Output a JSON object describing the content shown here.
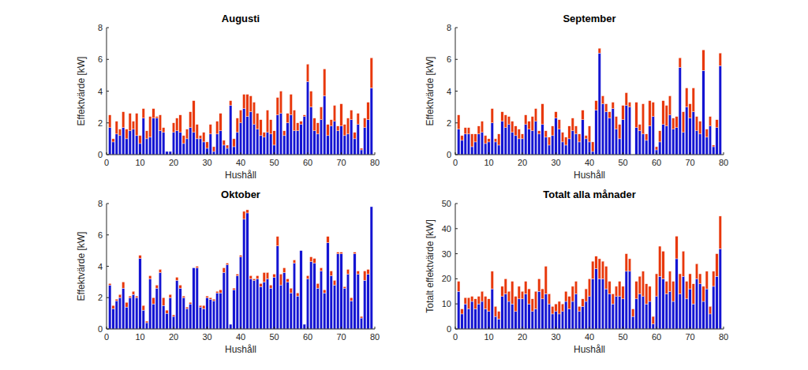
{
  "chart_data": [
    {
      "type": "bar",
      "title": "Augusti",
      "x_label": "Hushåll",
      "y_label": "Effektvärde [kW]",
      "stacked": true,
      "x": [
        1,
        2,
        3,
        4,
        5,
        6,
        7,
        8,
        9,
        10,
        11,
        12,
        13,
        14,
        15,
        16,
        17,
        18,
        19,
        20,
        21,
        22,
        23,
        24,
        25,
        26,
        27,
        28,
        29,
        30,
        31,
        32,
        33,
        34,
        35,
        36,
        37,
        38,
        39,
        40,
        41,
        42,
        43,
        44,
        45,
        46,
        47,
        48,
        49,
        50,
        51,
        52,
        53,
        54,
        55,
        56,
        57,
        58,
        59,
        60,
        61,
        62,
        63,
        64,
        65,
        66,
        67,
        68,
        69,
        70,
        71,
        72,
        73,
        74,
        75,
        76,
        77,
        78,
        79
      ],
      "xlim": [
        0,
        80
      ],
      "xticks": [
        0,
        10,
        20,
        30,
        40,
        50,
        60,
        70,
        80
      ],
      "ylim": [
        0,
        8
      ],
      "yticks": [
        0,
        2,
        4,
        6,
        8
      ],
      "series": [
        {
          "color": "#1414d2",
          "values": [
            1.7,
            0.8,
            1.3,
            1.2,
            1.7,
            1.0,
            1.5,
            1.6,
            1.2,
            0.7,
            2.3,
            1.0,
            1.1,
            2.3,
            2.3,
            1.5,
            1.4,
            0.2,
            0.2,
            1.4,
            1.5,
            1.4,
            0.7,
            1.0,
            1.7,
            1.4,
            1.0,
            1.0,
            0.8,
            0.4,
            1.3,
            0.2,
            1.3,
            1.5,
            0.6,
            0.4,
            3.1,
            0.5,
            1.4,
            2.0,
            2.9,
            2.4,
            2.7,
            1.9,
            1.6,
            1.2,
            1.1,
            1.4,
            1.3,
            0.6,
            2.5,
            2.6,
            1.2,
            2.0,
            2.5,
            1.5,
            1.5,
            1.9,
            2.4,
            4.6,
            3.0,
            1.5,
            1.3,
            2.2,
            3.7,
            1.2,
            1.8,
            2.1,
            1.5,
            1.8,
            1.2,
            1.3,
            2.2,
            1.0,
            1.9,
            0.3,
            1.7,
            2.2,
            4.2
          ]
        },
        {
          "color": "#e8380c",
          "values": [
            0.8,
            0.2,
            0.8,
            0.4,
            1.0,
            0.6,
            1.1,
            0.5,
            1.4,
            0.5,
            0.6,
            0.5,
            1.3,
            0.6,
            0.1,
            1.0,
            0.3,
            0,
            0,
            0.6,
            0.8,
            1.1,
            0.5,
            0.6,
            1.0,
            2.0,
            0.9,
            0.2,
            0.6,
            0.4,
            0.6,
            0.3,
            0.8,
            1.1,
            0.3,
            0.2,
            0.3,
            0.5,
            0.9,
            0.8,
            0.9,
            1.4,
            1.0,
            1.4,
            1.0,
            1.0,
            0.3,
            1.4,
            0.9,
            0.9,
            1.1,
            1.4,
            0.3,
            0.6,
            1.3,
            1.3,
            0.5,
            0.2,
            0.1,
            1.1,
            1.0,
            0.8,
            0.7,
            0.8,
            1.7,
            0.7,
            0.4,
            1.0,
            0.3,
            1.4,
            0.7,
            1.0,
            0.6,
            0.4,
            0.7,
            0.1,
            0.6,
            1.1,
            1.9
          ]
        }
      ]
    },
    {
      "type": "bar",
      "title": "September",
      "x_label": "Hushåll",
      "y_label": "Effektvärde [kW]",
      "stacked": true,
      "x": [
        1,
        2,
        3,
        4,
        5,
        6,
        7,
        8,
        9,
        10,
        11,
        12,
        13,
        14,
        15,
        16,
        17,
        18,
        19,
        20,
        21,
        22,
        23,
        24,
        25,
        26,
        27,
        28,
        29,
        30,
        31,
        32,
        33,
        34,
        35,
        36,
        37,
        38,
        39,
        40,
        41,
        42,
        43,
        44,
        45,
        46,
        47,
        48,
        49,
        50,
        51,
        52,
        53,
        54,
        55,
        56,
        57,
        58,
        59,
        60,
        61,
        62,
        63,
        64,
        65,
        66,
        67,
        68,
        69,
        70,
        71,
        72,
        73,
        74,
        75,
        76,
        77,
        78,
        79
      ],
      "xlim": [
        0,
        80
      ],
      "xticks": [
        0,
        10,
        20,
        30,
        40,
        50,
        60,
        70,
        80
      ],
      "ylim": [
        0,
        8
      ],
      "yticks": [
        0,
        2,
        4,
        6,
        8
      ],
      "series": [
        {
          "color": "#1414d2",
          "values": [
            1.6,
            0.9,
            1.3,
            1.3,
            0.5,
            0.8,
            1.3,
            1.4,
            0.7,
            0.8,
            2.0,
            0.8,
            0.6,
            2.1,
            1.7,
            1.9,
            1.4,
            1.2,
            1.0,
            1.0,
            1.9,
            1.6,
            1.5,
            2.1,
            1.3,
            1.9,
            1.1,
            0.6,
            1.2,
            2.3,
            1.6,
            0.8,
            0.6,
            1.0,
            1.5,
            1.3,
            0.8,
            2.2,
            1.0,
            0.8,
            0.2,
            2.8,
            6.4,
            3.2,
            2.7,
            2.3,
            2.9,
            1.6,
            1.0,
            2.2,
            3.1,
            3.0,
            0,
            1.7,
            1.5,
            1.3,
            0.9,
            1.8,
            2.4,
            0.3,
            0.8,
            1.9,
            1.8,
            2.5,
            1.6,
            1.7,
            5.5,
            1.4,
            3.0,
            2.3,
            2.7,
            1.5,
            1.3,
            5.3,
            1.1,
            1.8,
            0.5,
            1.7,
            5.6
          ]
        },
        {
          "color": "#e8380c",
          "values": [
            0.9,
            0.3,
            0.4,
            0.4,
            0.8,
            0.5,
            0.5,
            0.7,
            0.5,
            0.2,
            0.9,
            0.2,
            0.7,
            0.6,
            0.8,
            0.5,
            0.7,
            0.6,
            0.6,
            0.3,
            0.6,
            0.5,
            0.9,
            0.8,
            0.2,
            1.3,
            0.4,
            0.5,
            0.6,
            0.4,
            0.6,
            0.6,
            0.5,
            0.8,
            0.8,
            0.5,
            0.5,
            0.6,
            0.2,
            1.0,
            0.6,
            0.6,
            0.3,
            0.5,
            0.5,
            0.4,
            0.4,
            0.8,
            0.9,
            0.9,
            0.8,
            0.3,
            0,
            1.6,
            0.4,
            1.9,
            0.4,
            1.6,
            0.9,
            0.2,
            0.7,
            1.5,
            1.3,
            1.2,
            0.7,
            0.7,
            0.6,
            1.3,
            1.2,
            0.9,
            1.5,
            0.9,
            0.8,
            1.3,
            0.5,
            0.6,
            0.1,
            0.5,
            0.8
          ]
        }
      ]
    },
    {
      "type": "bar",
      "title": "Oktober",
      "x_label": "Hushåll",
      "y_label": "Effektvärde [kW]",
      "stacked": true,
      "x": [
        1,
        2,
        3,
        4,
        5,
        6,
        7,
        8,
        9,
        10,
        11,
        12,
        13,
        14,
        15,
        16,
        17,
        18,
        19,
        20,
        21,
        22,
        23,
        24,
        25,
        26,
        27,
        28,
        29,
        30,
        31,
        32,
        33,
        34,
        35,
        36,
        37,
        38,
        39,
        40,
        41,
        42,
        43,
        44,
        45,
        46,
        47,
        48,
        49,
        50,
        51,
        52,
        53,
        54,
        55,
        56,
        57,
        58,
        59,
        60,
        61,
        62,
        63,
        64,
        65,
        66,
        67,
        68,
        69,
        70,
        71,
        72,
        73,
        74,
        75,
        76,
        77,
        78,
        79
      ],
      "xlim": [
        0,
        80
      ],
      "xticks": [
        0,
        10,
        20,
        30,
        40,
        50,
        60,
        70,
        80
      ],
      "ylim": [
        0,
        8
      ],
      "yticks": [
        0,
        2,
        4,
        6,
        8
      ],
      "series": [
        {
          "color": "#1414d2",
          "values": [
            2.8,
            1.3,
            1.8,
            2.0,
            2.6,
            1.4,
            2.0,
            2.2,
            2.0,
            4.5,
            1.2,
            0.4,
            3.2,
            1.6,
            2.6,
            3.6,
            1.5,
            1.0,
            2.0,
            0.8,
            3.1,
            2.6,
            2.0,
            1.3,
            1.6,
            3.9,
            3.9,
            1.4,
            1.3,
            2.0,
            1.9,
            1.8,
            2.3,
            2.3,
            3.6,
            4.1,
            0.3,
            2.5,
            3.4,
            4.6,
            7.0,
            7.4,
            3.2,
            3.1,
            3.2,
            2.7,
            3.0,
            3.2,
            2.6,
            3.3,
            5.3,
            2.8,
            3.6,
            3.0,
            2.3,
            4.2,
            2.1,
            5.0,
            0.3,
            3.2,
            4.3,
            4.2,
            2.6,
            3.7,
            2.3,
            5.5,
            3.4,
            2.8,
            4.8,
            4.8,
            2.6,
            3.5,
            1.8,
            4.8,
            3.5,
            0.7,
            3.1,
            3.5,
            7.8
          ]
        },
        {
          "color": "#e8380c",
          "values": [
            0.1,
            0.2,
            0.1,
            0.2,
            0.4,
            0.3,
            0.1,
            0.2,
            0.1,
            0.2,
            0.3,
            0.1,
            0.2,
            0.4,
            0.2,
            0.2,
            0.5,
            0.2,
            0.2,
            0.1,
            0.2,
            0.2,
            0.1,
            0.1,
            0.1,
            0,
            0.1,
            0.1,
            0.2,
            0.1,
            0.1,
            0.1,
            0.1,
            0.2,
            0.3,
            0.1,
            0,
            0.1,
            0.1,
            0.1,
            0.5,
            0.2,
            0.2,
            0.1,
            0.2,
            0.2,
            0.6,
            0.4,
            0.2,
            0.2,
            0.6,
            0.7,
            0.3,
            0.2,
            0.3,
            0.2,
            0.2,
            0,
            0,
            0.2,
            0.3,
            0.3,
            0.3,
            0.2,
            0.2,
            0.4,
            0.3,
            0.3,
            0.1,
            0.1,
            0.1,
            0.3,
            0.2,
            0.1,
            0.2,
            0.1,
            0.6,
            0.3,
            0
          ]
        }
      ]
    },
    {
      "type": "bar",
      "title": "Totalt alla månader",
      "x_label": "Hushåll",
      "y_label": "Totalt effektvärde [kW]",
      "stacked": true,
      "x": [
        1,
        2,
        3,
        4,
        5,
        6,
        7,
        8,
        9,
        10,
        11,
        12,
        13,
        14,
        15,
        16,
        17,
        18,
        19,
        20,
        21,
        22,
        23,
        24,
        25,
        26,
        27,
        28,
        29,
        30,
        31,
        32,
        33,
        34,
        35,
        36,
        37,
        38,
        39,
        40,
        41,
        42,
        43,
        44,
        45,
        46,
        47,
        48,
        49,
        50,
        51,
        52,
        53,
        54,
        55,
        56,
        57,
        58,
        59,
        60,
        61,
        62,
        63,
        64,
        65,
        66,
        67,
        68,
        69,
        70,
        71,
        72,
        73,
        74,
        75,
        76,
        77,
        78,
        79
      ],
      "xlim": [
        0,
        80
      ],
      "xticks": [
        0,
        10,
        20,
        30,
        40,
        50,
        60,
        70,
        80
      ],
      "ylim": [
        0,
        50
      ],
      "yticks": [
        0,
        10,
        20,
        30,
        40,
        50
      ],
      "series": [
        {
          "color": "#1414d2",
          "values": [
            15,
            6,
            10,
            8,
            11,
            8,
            10,
            11,
            8,
            7,
            16,
            5,
            4,
            13,
            14,
            11,
            10,
            7,
            12,
            12,
            14,
            10,
            7,
            8,
            15,
            12,
            14,
            10,
            6,
            7,
            6,
            7,
            11,
            8,
            11,
            14,
            7,
            9,
            11,
            13,
            20,
            24,
            20,
            20,
            16,
            14,
            10,
            13,
            13,
            12,
            23,
            23,
            5,
            12,
            14,
            13,
            10,
            11,
            2,
            13,
            21,
            20,
            14,
            15,
            11,
            28,
            14,
            21,
            12,
            16,
            10,
            20,
            18,
            11,
            16,
            6,
            17,
            21,
            32
          ]
        },
        {
          "color": "#e8380c",
          "values": [
            4,
            2,
            2.5,
            4.5,
            2,
            4,
            3,
            4,
            5,
            5,
            7,
            4,
            3,
            4,
            6,
            4,
            9,
            6,
            5,
            3,
            5,
            6,
            5,
            7,
            5,
            4,
            11,
            4,
            3,
            3,
            5,
            3,
            4,
            5,
            6,
            5,
            2,
            3,
            5,
            7,
            7,
            5,
            8,
            7,
            9,
            5,
            4,
            4,
            6,
            5,
            7,
            5,
            3,
            7,
            7,
            10,
            8,
            6,
            3,
            9,
            12,
            11,
            5,
            8,
            8,
            9,
            8,
            10,
            7,
            6,
            8,
            6,
            4,
            6,
            7,
            3,
            6,
            9,
            13
          ]
        }
      ]
    }
  ]
}
